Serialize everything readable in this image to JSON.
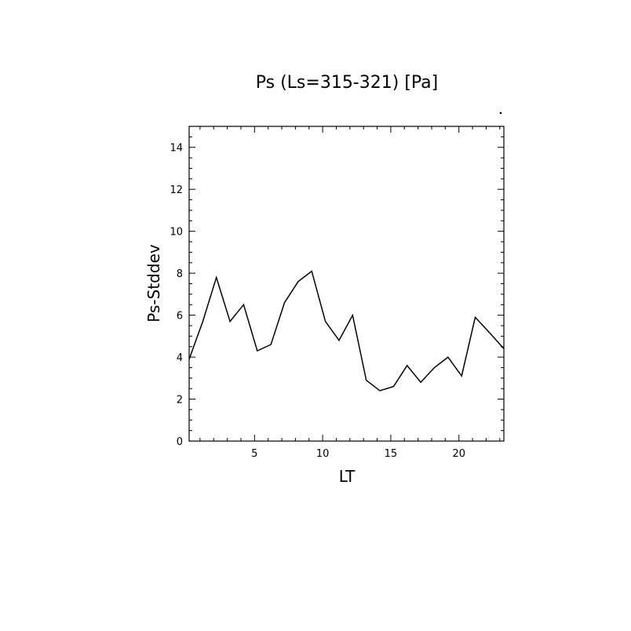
{
  "chart_data": {
    "type": "line",
    "title": "Ps (Ls=315-321) [Pa]",
    "xlabel": "LT",
    "ylabel": "Ps-Stddev",
    "xlim": [
      0.2,
      23.3
    ],
    "ylim": [
      0,
      15
    ],
    "x_ticks": [
      5,
      10,
      15,
      20
    ],
    "y_ticks": [
      0,
      2,
      4,
      6,
      8,
      10,
      12,
      14
    ],
    "x_tick_labels": [
      "5",
      "10",
      "15",
      "20"
    ],
    "y_tick_labels": [
      "0",
      "2",
      "4",
      "6",
      "8",
      "10",
      "12",
      "14"
    ],
    "grid": false,
    "series": [
      {
        "x": [
          0.2,
          1.2,
          2.2,
          3.2,
          4.2,
          5.2,
          6.2,
          7.2,
          8.2,
          9.2,
          10.2,
          11.2,
          12.2,
          13.2,
          14.2,
          15.2,
          16.2,
          17.2,
          18.2,
          19.2,
          20.2,
          21.2,
          22.2,
          23.3
        ],
        "y": [
          3.9,
          5.7,
          7.8,
          5.7,
          6.5,
          4.3,
          4.6,
          6.6,
          7.6,
          8.1,
          5.7,
          4.8,
          6.0,
          2.9,
          2.4,
          2.6,
          3.6,
          2.8,
          3.5,
          4.0,
          3.1,
          5.9,
          5.2,
          4.4
        ]
      }
    ]
  }
}
